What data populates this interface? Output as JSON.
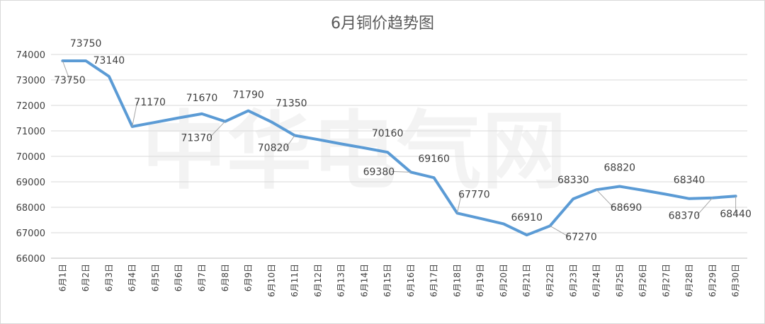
{
  "chart_data": {
    "type": "line",
    "title": "6月铜价趋势图",
    "watermark": "中华电气网",
    "xlabel": "",
    "ylabel": "",
    "ylim": [
      66000,
      74000
    ],
    "ytick_step": 1000,
    "yticks": [
      "66000",
      "67000",
      "68000",
      "69000",
      "70000",
      "71000",
      "72000",
      "73000",
      "74000"
    ],
    "grid": true,
    "legend": "none",
    "colors": {
      "series": "#5b9bd5",
      "grid": "#d9d9d9",
      "text": "#404040",
      "title": "#595959"
    },
    "categories": [
      "6月1日",
      "6月2日",
      "6月3日",
      "6月4日",
      "6月5日",
      "6月6日",
      "6月7日",
      "6月8日",
      "6月9日",
      "6月10日",
      "6月11日",
      "6月12日",
      "6月13日",
      "6月14日",
      "6月15日",
      "6月16日",
      "6月17日",
      "6月18日",
      "6月19日",
      "6月20日",
      "6月21日",
      "6月22日",
      "6月23日",
      "6月24日",
      "6月25日",
      "6月26日",
      "6月27日",
      "6月28日",
      "6月29日",
      "6月30日"
    ],
    "series": [
      {
        "values": [
          73750,
          73750,
          73140,
          71170,
          71340,
          71510,
          71670,
          71370,
          71790,
          71350,
          70820,
          70660,
          70490,
          70330,
          70160,
          69380,
          69160,
          67770,
          67560,
          67350,
          66910,
          67270,
          68330,
          68690,
          68820,
          68670,
          68510,
          68340,
          68370,
          68440
        ]
      }
    ],
    "data_labels": [
      {
        "index": 0,
        "text": "73750"
      },
      {
        "index": 1,
        "text": "73750"
      },
      {
        "index": 2,
        "text": "73140"
      },
      {
        "index": 3,
        "text": "71170"
      },
      {
        "index": 6,
        "text": "71670"
      },
      {
        "index": 7,
        "text": "71370"
      },
      {
        "index": 8,
        "text": "71790"
      },
      {
        "index": 9,
        "text": "71350"
      },
      {
        "index": 10,
        "text": "70820"
      },
      {
        "index": 14,
        "text": "70160"
      },
      {
        "index": 15,
        "text": "69380"
      },
      {
        "index": 16,
        "text": "69160"
      },
      {
        "index": 17,
        "text": "67770"
      },
      {
        "index": 20,
        "text": "66910"
      },
      {
        "index": 21,
        "text": "67270"
      },
      {
        "index": 22,
        "text": "68330"
      },
      {
        "index": 23,
        "text": "68690"
      },
      {
        "index": 24,
        "text": "68820"
      },
      {
        "index": 27,
        "text": "68340"
      },
      {
        "index": 28,
        "text": "68370"
      },
      {
        "index": 29,
        "text": "68440"
      }
    ]
  }
}
